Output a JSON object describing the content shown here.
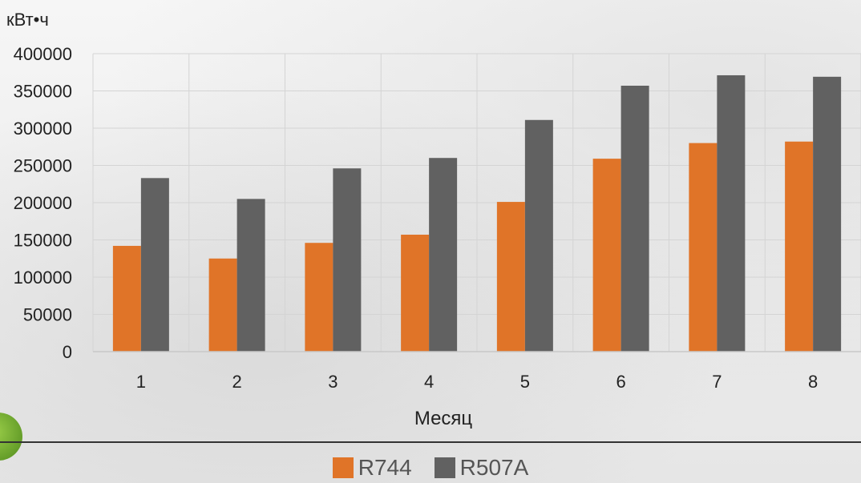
{
  "chart_data": {
    "type": "bar",
    "unit_label": "кВт•ч",
    "xlabel": "Месяц",
    "categories": [
      "1",
      "2",
      "3",
      "4",
      "5",
      "6",
      "7",
      "8"
    ],
    "ylim": [
      0,
      400000
    ],
    "yticks": [
      "0",
      "50000",
      "100000",
      "150000",
      "200000",
      "250000",
      "300000",
      "350000",
      "400000"
    ],
    "grid": true,
    "legend_position": "bottom",
    "series": [
      {
        "name": "R744",
        "color": "#e07428",
        "values": [
          142000,
          125000,
          146000,
          157000,
          201000,
          259000,
          280000,
          282000
        ]
      },
      {
        "name": "R507A",
        "color": "#616161",
        "values": [
          233000,
          205000,
          246000,
          260000,
          311000,
          357000,
          371000,
          369000
        ]
      }
    ]
  }
}
